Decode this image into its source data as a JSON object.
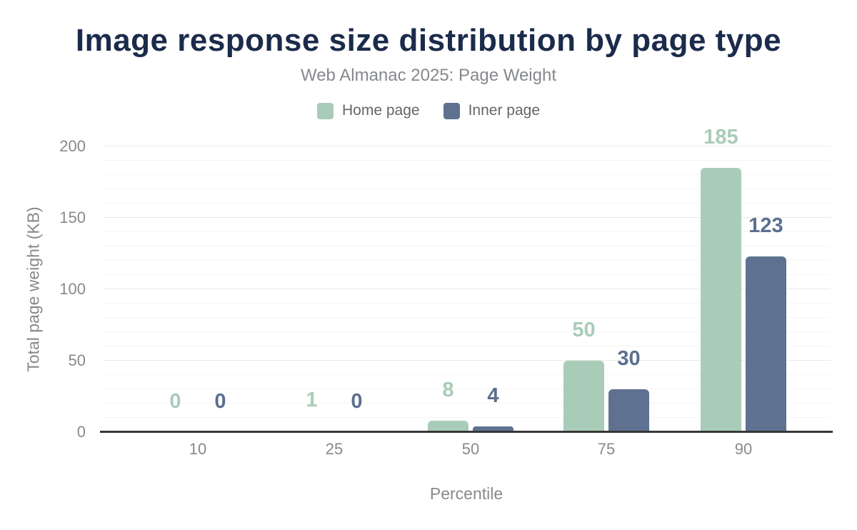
{
  "header": {
    "title": "Image response size distribution by page type",
    "subtitle": "Web Almanac 2025: Page Weight"
  },
  "legend": {
    "items": [
      {
        "label": "Home page",
        "color": "#a9ccb8"
      },
      {
        "label": "Inner page",
        "color": "#5e7190"
      }
    ]
  },
  "chart_data": {
    "type": "bar",
    "title": "Image response size distribution by page type",
    "subtitle": "Web Almanac 2025: Page Weight",
    "categories": [
      "10",
      "25",
      "50",
      "75",
      "90"
    ],
    "series": [
      {
        "name": "Home page",
        "color": "#a9ccb8",
        "label_color": "#a9ccb8",
        "values": [
          0,
          1,
          8,
          50,
          185
        ]
      },
      {
        "name": "Inner page",
        "color": "#5e7190",
        "label_color": "#5b6f8f",
        "values": [
          0,
          0,
          4,
          30,
          123
        ]
      }
    ],
    "xlabel": "Percentile",
    "ylabel": "Total page weight (KB)",
    "ylim": [
      0,
      200
    ],
    "ytick_step": 50,
    "grid_minor_step": 10,
    "grid": true,
    "legend_position": "top",
    "data_labels": true
  },
  "colors": {
    "title": "#1b2b4b",
    "subtitle": "#85888c",
    "axis_text": "#87898c",
    "baseline": "#363636",
    "grid_major": "#e9e9e9",
    "grid_minor": "#f5f5f5",
    "background": "#ffffff"
  }
}
